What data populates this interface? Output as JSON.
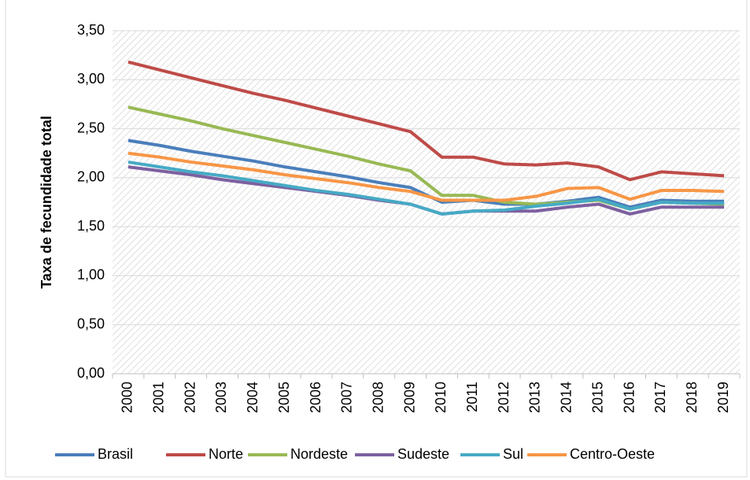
{
  "chart_data": {
    "type": "line",
    "y_axis_label": "Taxa de fecundidade total",
    "categories": [
      "2000",
      "2001",
      "2002",
      "2003",
      "2004",
      "2005",
      "2006",
      "2007",
      "2008",
      "2009",
      "2010",
      "2011",
      "2012",
      "2013",
      "2014",
      "2015",
      "2016",
      "2017",
      "2018",
      "2019"
    ],
    "series": [
      {
        "name": "Brasil",
        "color": "#4a7ebb",
        "values": [
          2.38,
          2.33,
          2.27,
          2.22,
          2.17,
          2.11,
          2.06,
          2.01,
          1.95,
          1.9,
          1.75,
          1.77,
          1.73,
          1.73,
          1.76,
          1.8,
          1.7,
          1.77,
          1.76,
          1.76
        ]
      },
      {
        "name": "Norte",
        "color": "#be4b48",
        "values": [
          3.18,
          3.1,
          3.02,
          2.94,
          2.86,
          2.79,
          2.71,
          2.63,
          2.55,
          2.47,
          2.21,
          2.21,
          2.14,
          2.13,
          2.15,
          2.11,
          1.98,
          2.06,
          2.04,
          2.02
        ]
      },
      {
        "name": "Nordeste",
        "color": "#98b954",
        "values": [
          2.72,
          2.65,
          2.58,
          2.5,
          2.43,
          2.36,
          2.29,
          2.22,
          2.14,
          2.07,
          1.82,
          1.82,
          1.75,
          1.73,
          1.75,
          1.77,
          1.68,
          1.75,
          1.74,
          1.73
        ]
      },
      {
        "name": "Sudeste",
        "color": "#7d60a0",
        "values": [
          2.11,
          2.07,
          2.03,
          1.98,
          1.94,
          1.9,
          1.86,
          1.82,
          1.77,
          1.73,
          1.63,
          1.66,
          1.66,
          1.66,
          1.7,
          1.73,
          1.63,
          1.7,
          1.7,
          1.7
        ]
      },
      {
        "name": "Sul",
        "color": "#46aac5",
        "values": [
          2.16,
          2.11,
          2.06,
          2.02,
          1.97,
          1.92,
          1.87,
          1.83,
          1.78,
          1.73,
          1.63,
          1.66,
          1.67,
          1.71,
          1.74,
          1.78,
          1.68,
          1.75,
          1.74,
          1.74
        ]
      },
      {
        "name": "Centro-Oeste",
        "color": "#f79646",
        "values": [
          2.25,
          2.21,
          2.16,
          2.12,
          2.08,
          2.03,
          1.99,
          1.95,
          1.9,
          1.86,
          1.77,
          1.77,
          1.77,
          1.81,
          1.89,
          1.9,
          1.78,
          1.87,
          1.87,
          1.86
        ]
      }
    ],
    "ylim": [
      0,
      3.5
    ],
    "yticks": [
      {
        "value": 0,
        "label": "0,00"
      },
      {
        "value": 0.5,
        "label": "0,50"
      },
      {
        "value": 1,
        "label": "1,00"
      },
      {
        "value": 1.5,
        "label": "1,50"
      },
      {
        "value": 2,
        "label": "2,00"
      },
      {
        "value": 2.5,
        "label": "2,50"
      },
      {
        "value": 3,
        "label": "3,00"
      },
      {
        "value": 3.5,
        "label": "3,50"
      }
    ],
    "grid": true,
    "legend": "bottom"
  }
}
